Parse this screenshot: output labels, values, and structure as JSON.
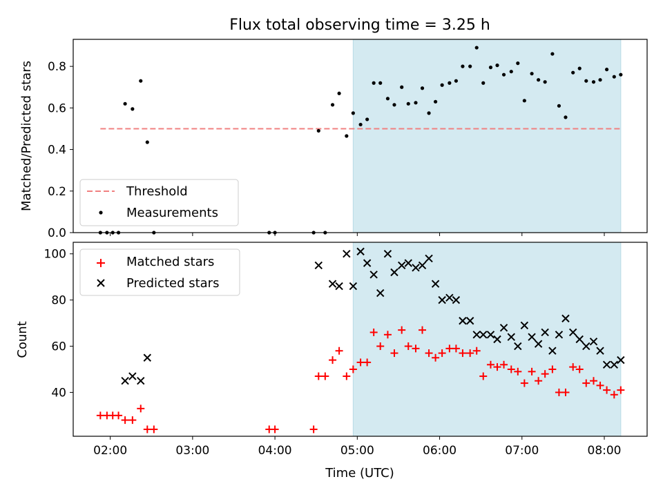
{
  "chart_data": [
    {
      "type": "scatter",
      "title": "Flux total observing time = 3.25 h",
      "xlabel": "",
      "ylabel": "Matched/Predicted stars",
      "ylim": [
        0,
        0.93
      ],
      "yticks": [
        0.0,
        0.2,
        0.4,
        0.6,
        0.8
      ],
      "ytick_labels": [
        "0.0",
        "0.2",
        "0.4",
        "0.6",
        "0.8"
      ],
      "x_unit": "UTC hours",
      "xlim": [
        1.55,
        8.52
      ],
      "shaded_region": [
        4.95,
        8.2
      ],
      "threshold": {
        "name": "Threshold",
        "value": 0.5,
        "x_range": [
          1.88,
          8.2
        ],
        "color": "#f08080",
        "style": "dashed"
      },
      "legend_position": "lower-left",
      "series": [
        {
          "name": "Measurements",
          "marker": "dot",
          "color": "#000000",
          "x": [
            1.88,
            1.96,
            2.03,
            2.1,
            2.18,
            2.27,
            2.37,
            2.45,
            2.53,
            3.93,
            4.0,
            4.47,
            4.53,
            4.61,
            4.7,
            4.78,
            4.87,
            4.95,
            5.04,
            5.12,
            5.2,
            5.28,
            5.37,
            5.45,
            5.54,
            5.62,
            5.71,
            5.79,
            5.87,
            5.95,
            6.03,
            6.12,
            6.2,
            6.28,
            6.37,
            6.45,
            6.53,
            6.62,
            6.7,
            6.78,
            6.87,
            6.95,
            7.03,
            7.12,
            7.2,
            7.28,
            7.37,
            7.45,
            7.53,
            7.62,
            7.7,
            7.78,
            7.87,
            7.95,
            8.03,
            8.12,
            8.2
          ],
          "y": [
            0,
            0,
            0,
            0,
            0.62,
            0.595,
            0.73,
            0.435,
            0,
            0,
            0,
            0,
            0.49,
            0,
            0.615,
            0.67,
            0.465,
            0.575,
            0.52,
            0.545,
            0.72,
            0.72,
            0.645,
            0.615,
            0.7,
            0.62,
            0.625,
            0.695,
            0.575,
            0.63,
            0.71,
            0.72,
            0.73,
            0.8,
            0.8,
            0.89,
            0.72,
            0.795,
            0.805,
            0.76,
            0.775,
            0.815,
            0.635,
            0.765,
            0.735,
            0.725,
            0.86,
            0.61,
            0.555,
            0.77,
            0.79,
            0.73,
            0.725,
            0.735,
            0.785,
            0.75,
            0.76
          ]
        }
      ]
    },
    {
      "type": "scatter",
      "title": "",
      "xlabel": "Time (UTC)",
      "ylabel": "Count",
      "ylim": [
        21,
        105
      ],
      "yticks": [
        40,
        60,
        80,
        100
      ],
      "ytick_labels": [
        "40",
        "60",
        "80",
        "100"
      ],
      "xticks": [
        2,
        3,
        4,
        5,
        6,
        7,
        8
      ],
      "xtick_labels": [
        "02:00",
        "03:00",
        "04:00",
        "05:00",
        "06:00",
        "07:00",
        "08:00"
      ],
      "x_unit": "UTC hours",
      "xlim": [
        1.55,
        8.52
      ],
      "shaded_region": [
        4.95,
        8.2
      ],
      "legend_position": "upper-left",
      "series": [
        {
          "name": "Matched stars",
          "marker": "plus",
          "color": "#ff0000",
          "x": [
            1.88,
            1.96,
            2.03,
            2.1,
            2.18,
            2.27,
            2.37,
            2.45,
            2.53,
            3.93,
            4.0,
            4.47,
            4.53,
            4.61,
            4.7,
            4.78,
            4.87,
            4.95,
            5.04,
            5.12,
            5.2,
            5.28,
            5.37,
            5.45,
            5.54,
            5.62,
            5.71,
            5.79,
            5.87,
            5.95,
            6.03,
            6.12,
            6.2,
            6.28,
            6.37,
            6.45,
            6.53,
            6.62,
            6.7,
            6.78,
            6.87,
            6.95,
            7.03,
            7.12,
            7.2,
            7.28,
            7.37,
            7.45,
            7.53,
            7.62,
            7.7,
            7.78,
            7.87,
            7.95,
            8.03,
            8.12,
            8.2
          ],
          "y": [
            30,
            30,
            30,
            30,
            28,
            28,
            33,
            24,
            24,
            24,
            24,
            24,
            47,
            47,
            54,
            58,
            47,
            50,
            53,
            53,
            66,
            60,
            65,
            57,
            67,
            60,
            59,
            67,
            57,
            55,
            57,
            59,
            59,
            57,
            57,
            58,
            47,
            52,
            51,
            52,
            50,
            49,
            44,
            49,
            45,
            48,
            50,
            40,
            40,
            51,
            50,
            44,
            45,
            43,
            41,
            39,
            41
          ]
        },
        {
          "name": "Predicted stars",
          "marker": "x",
          "color": "#000000",
          "x": [
            2.18,
            2.27,
            2.37,
            2.45,
            4.53,
            4.7,
            4.78,
            4.87,
            4.95,
            5.04,
            5.12,
            5.2,
            5.28,
            5.37,
            5.45,
            5.54,
            5.62,
            5.71,
            5.79,
            5.87,
            5.95,
            6.03,
            6.12,
            6.2,
            6.28,
            6.37,
            6.45,
            6.53,
            6.62,
            6.7,
            6.78,
            6.87,
            6.95,
            7.03,
            7.12,
            7.2,
            7.28,
            7.37,
            7.45,
            7.53,
            7.62,
            7.7,
            7.78,
            7.87,
            7.95,
            8.03,
            8.12,
            8.2
          ],
          "y": [
            45,
            47,
            45,
            55,
            95,
            87,
            86,
            100,
            86,
            101,
            96,
            91,
            83,
            100,
            92,
            95,
            96,
            94,
            95,
            98,
            87,
            80,
            81,
            80,
            71,
            71,
            65,
            65,
            65,
            63,
            68,
            64,
            60,
            69,
            64,
            61,
            66,
            58,
            65,
            72,
            66,
            63,
            60,
            62,
            58,
            52,
            52,
            54
          ]
        }
      ]
    }
  ],
  "colors": {
    "shade": "#d4eaf1",
    "threshold": "#f08080",
    "matched": "#ff0000",
    "predicted": "#000000"
  }
}
